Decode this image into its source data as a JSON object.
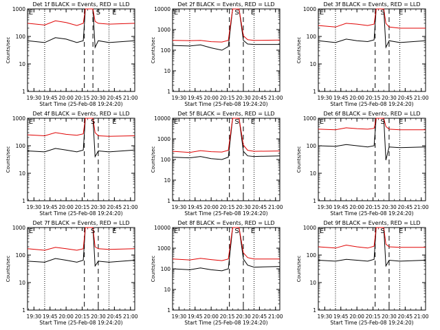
{
  "figure": {
    "ylabel": "Counts/sec",
    "xlabel": "Start Time (25-Feb-08 19:24:20)"
  },
  "colors": {
    "events": "#000000",
    "lld": "#e00000",
    "axes": "#000000",
    "background": "#ffffff"
  },
  "chart_data": [
    {
      "type": "line",
      "title": "Det 1f BLACK = Events, RED = LLD",
      "xlabel": "Start Time (25-Feb-08 19:24:20)",
      "ylabel": "Counts/sec",
      "yscale": "log",
      "xlim": [
        "19:24",
        "21:04"
      ],
      "ylim": [
        1,
        1000
      ],
      "x_tick_labels": [
        "19:30",
        "19:45",
        "20:00",
        "20:15",
        "20:30",
        "20:45",
        "21:00"
      ],
      "y_tick_labels": [
        "1",
        "10",
        "100",
        "1000"
      ],
      "markers": [
        {
          "label": "S",
          "time": "20:30"
        },
        {
          "label": "E",
          "time": "20:45"
        }
      ],
      "dotted_lines": [
        "19:40",
        "20:40"
      ],
      "dashed_lines": [
        "20:17",
        "20:25"
      ],
      "x": [
        "19:24",
        "19:40",
        "19:50",
        "20:00",
        "20:10",
        "20:16",
        "20:18",
        "20:25",
        "20:27",
        "20:30",
        "20:40",
        "21:04"
      ],
      "series": [
        {
          "name": "Events",
          "color": "#000000",
          "values": [
            70,
            60,
            90,
            80,
            60,
            70,
            1000,
            1000,
            40,
            70,
            60,
            70
          ]
        },
        {
          "name": "LLD",
          "color": "#e00000",
          "values": [
            300,
            260,
            370,
            320,
            250,
            300,
            1000,
            1000,
            350,
            300,
            280,
            300
          ]
        }
      ]
    },
    {
      "type": "line",
      "title": "Det 2f BLACK = Events, RED = LLD",
      "xlabel": "Start Time (25-Feb-08 19:24:20)",
      "ylabel": "Counts/sec",
      "yscale": "log",
      "xlim": [
        "19:24",
        "21:04"
      ],
      "ylim": [
        1,
        10000
      ],
      "x_tick_labels": [
        "19:30",
        "19:45",
        "20:00",
        "20:15",
        "20:30",
        "20:45",
        "21:00"
      ],
      "y_tick_labels": [
        "1",
        "10",
        "100",
        "1000",
        "10000"
      ],
      "markers": [
        {
          "label": "S",
          "time": "20:24"
        },
        {
          "label": "E",
          "time": "20:39"
        }
      ],
      "dotted_lines": [
        "19:40",
        "20:40"
      ],
      "dashed_lines": [
        "20:17",
        "20:30"
      ],
      "x": [
        "19:24",
        "19:40",
        "19:50",
        "20:00",
        "20:10",
        "20:16",
        "20:20",
        "20:26",
        "20:30",
        "20:34",
        "20:40",
        "21:04"
      ],
      "series": [
        {
          "name": "Events",
          "color": "#000000",
          "values": [
            170,
            160,
            180,
            130,
            100,
            150,
            10000,
            10000,
            300,
            200,
            190,
            190
          ]
        },
        {
          "name": "LLD",
          "color": "#e00000",
          "values": [
            300,
            290,
            300,
            260,
            250,
            300,
            10000,
            10000,
            500,
            320,
            300,
            310
          ]
        }
      ]
    },
    {
      "type": "line",
      "title": "Det 3f BLACK = Events, RED = LLD",
      "xlabel": "Start Time (25-Feb-08 19:24:20)",
      "ylabel": "Counts/sec",
      "yscale": "log",
      "xlim": [
        "19:24",
        "21:04"
      ],
      "ylim": [
        1,
        1000
      ],
      "x_tick_labels": [
        "19:30",
        "19:45",
        "20:00",
        "20:15",
        "20:30",
        "20:45",
        "21:00"
      ],
      "y_tick_labels": [
        "1",
        "10",
        "100",
        "1000"
      ],
      "markers": [
        {
          "label": "S",
          "time": "20:24"
        },
        {
          "label": "E",
          "time": "20:41"
        }
      ],
      "dotted_lines": [
        "19:40",
        "20:40"
      ],
      "dashed_lines": [
        "20:17",
        "20:30"
      ],
      "x": [
        "19:24",
        "19:40",
        "19:50",
        "20:00",
        "20:10",
        "20:16",
        "20:18",
        "20:25",
        "20:27",
        "20:30",
        "20:40",
        "21:04"
      ],
      "series": [
        {
          "name": "Events",
          "color": "#000000",
          "values": [
            70,
            60,
            80,
            70,
            65,
            75,
            1000,
            1000,
            40,
            70,
            60,
            70
          ]
        },
        {
          "name": "LLD",
          "color": "#e00000",
          "values": [
            250,
            220,
            300,
            280,
            250,
            280,
            1000,
            1000,
            300,
            220,
            200,
            200
          ]
        }
      ]
    },
    {
      "type": "line",
      "title": "Det 4f BLACK = Events, RED = LLD",
      "xlabel": "Start Time (25-Feb-08 19:24:20)",
      "ylabel": "Counts/sec",
      "yscale": "log",
      "xlim": [
        "19:24",
        "21:04"
      ],
      "ylim": [
        1,
        1000
      ],
      "x_tick_labels": [
        "19:30",
        "19:45",
        "20:00",
        "20:15",
        "20:30",
        "20:45",
        "21:00"
      ],
      "y_tick_labels": [
        "1",
        "10",
        "100",
        "1000"
      ],
      "markers": [
        {
          "label": "S",
          "time": "20:25"
        },
        {
          "label": "E",
          "time": "20:45"
        }
      ],
      "dotted_lines": [
        "19:40",
        "20:40"
      ],
      "dashed_lines": [
        "20:17",
        "20:30"
      ],
      "x": [
        "19:24",
        "19:40",
        "19:50",
        "20:00",
        "20:10",
        "20:16",
        "20:18",
        "20:25",
        "20:27",
        "20:30",
        "20:40",
        "21:04"
      ],
      "series": [
        {
          "name": "Events",
          "color": "#000000",
          "values": [
            65,
            60,
            80,
            70,
            60,
            70,
            1000,
            1000,
            40,
            65,
            60,
            70
          ]
        },
        {
          "name": "LLD",
          "color": "#e00000",
          "values": [
            250,
            230,
            300,
            260,
            240,
            270,
            1000,
            1000,
            300,
            230,
            220,
            230
          ]
        }
      ]
    },
    {
      "type": "line",
      "title": "Det 5f BLACK = Events, RED = LLD",
      "xlabel": "Start Time (25-Feb-08 19:24:20)",
      "ylabel": "Counts/sec",
      "yscale": "log",
      "xlim": [
        "19:24",
        "21:04"
      ],
      "ylim": [
        1,
        10000
      ],
      "x_tick_labels": [
        "19:30",
        "19:45",
        "20:00",
        "20:15",
        "20:30",
        "20:45",
        "21:00"
      ],
      "y_tick_labels": [
        "1",
        "10",
        "100",
        "1000",
        "10000"
      ],
      "markers": [
        {
          "label": "S",
          "time": "20:24"
        },
        {
          "label": "E",
          "time": "20:39"
        }
      ],
      "dotted_lines": [
        "19:40",
        "20:40"
      ],
      "dashed_lines": [
        "20:17",
        "20:30"
      ],
      "x": [
        "19:24",
        "19:40",
        "19:50",
        "20:00",
        "20:10",
        "20:16",
        "20:20",
        "20:26",
        "20:30",
        "20:34",
        "20:40",
        "21:04"
      ],
      "series": [
        {
          "name": "Events",
          "color": "#000000",
          "values": [
            130,
            120,
            140,
            110,
            100,
            130,
            10000,
            10000,
            250,
            150,
            140,
            150
          ]
        },
        {
          "name": "LLD",
          "color": "#e00000",
          "values": [
            250,
            220,
            270,
            240,
            230,
            280,
            10000,
            10000,
            500,
            280,
            250,
            260
          ]
        }
      ]
    },
    {
      "type": "line",
      "title": "Det 6f BLACK = Events, RED = LLD",
      "xlabel": "Start Time (25-Feb-08 19:24:20)",
      "ylabel": "Counts/sec",
      "yscale": "log",
      "xlim": [
        "19:24",
        "21:04"
      ],
      "ylim": [
        1,
        1000
      ],
      "x_tick_labels": [
        "19:30",
        "19:45",
        "20:00",
        "20:15",
        "20:30",
        "20:45",
        "21:00"
      ],
      "y_tick_labels": [
        "1",
        "10",
        "100",
        "1000"
      ],
      "markers": [
        {
          "label": "S",
          "time": "20:24"
        },
        {
          "label": "E",
          "time": "20:41"
        }
      ],
      "dotted_lines": [
        "19:40",
        "20:40"
      ],
      "dashed_lines": [
        "20:17",
        "20:30"
      ],
      "x": [
        "19:24",
        "19:40",
        "19:50",
        "20:00",
        "20:10",
        "20:16",
        "20:18",
        "20:25",
        "20:27",
        "20:30",
        "20:40",
        "21:04"
      ],
      "series": [
        {
          "name": "Events",
          "color": "#000000",
          "values": [
            100,
            95,
            110,
            100,
            90,
            100,
            1000,
            1000,
            30,
            90,
            85,
            90
          ]
        },
        {
          "name": "LLD",
          "color": "#e00000",
          "values": [
            400,
            380,
            450,
            420,
            400,
            430,
            1000,
            1000,
            500,
            400,
            380,
            380
          ]
        }
      ]
    },
    {
      "type": "line",
      "title": "Det 7f BLACK = Events, RED = LLD",
      "xlabel": "Start Time (25-Feb-08 19:24:20)",
      "ylabel": "Counts/sec",
      "yscale": "log",
      "xlim": [
        "19:24",
        "21:04"
      ],
      "ylim": [
        1,
        1000
      ],
      "x_tick_labels": [
        "19:30",
        "19:45",
        "20:00",
        "20:15",
        "20:30",
        "20:45",
        "21:00"
      ],
      "y_tick_labels": [
        "1",
        "10",
        "100",
        "1000"
      ],
      "markers": [
        {
          "label": "S",
          "time": "20:25"
        },
        {
          "label": "E",
          "time": "20:45"
        }
      ],
      "dotted_lines": [
        "19:40",
        "20:40"
      ],
      "dashed_lines": [
        "20:17",
        "20:30"
      ],
      "x": [
        "19:24",
        "19:40",
        "19:50",
        "20:00",
        "20:10",
        "20:16",
        "20:18",
        "20:25",
        "20:27",
        "20:30",
        "20:40",
        "21:04"
      ],
      "series": [
        {
          "name": "Events",
          "color": "#000000",
          "values": [
            60,
            55,
            75,
            65,
            55,
            65,
            1000,
            1000,
            40,
            60,
            55,
            65
          ]
        },
        {
          "name": "LLD",
          "color": "#e00000",
          "values": [
            170,
            150,
            190,
            170,
            150,
            170,
            1000,
            1000,
            200,
            170,
            160,
            170
          ]
        }
      ]
    },
    {
      "type": "line",
      "title": "Det 8f BLACK = Events, RED = LLD",
      "xlabel": "Start Time (25-Feb-08 19:24:20)",
      "ylabel": "Counts/sec",
      "yscale": "log",
      "xlim": [
        "19:24",
        "21:04"
      ],
      "ylim": [
        1,
        10000
      ],
      "x_tick_labels": [
        "19:30",
        "19:45",
        "20:00",
        "20:15",
        "20:30",
        "20:45",
        "21:00"
      ],
      "y_tick_labels": [
        "1",
        "10",
        "100",
        "1000",
        "10000"
      ],
      "markers": [
        {
          "label": "S",
          "time": "20:24"
        },
        {
          "label": "E",
          "time": "20:39"
        }
      ],
      "dotted_lines": [
        "19:40",
        "20:40"
      ],
      "dashed_lines": [
        "20:17",
        "20:30"
      ],
      "x": [
        "19:24",
        "19:40",
        "19:50",
        "20:00",
        "20:10",
        "20:16",
        "20:20",
        "20:26",
        "20:30",
        "20:34",
        "20:40",
        "21:04"
      ],
      "series": [
        {
          "name": "Events",
          "color": "#000000",
          "values": [
            100,
            90,
            110,
            90,
            80,
            100,
            10000,
            10000,
            300,
            150,
            120,
            130
          ]
        },
        {
          "name": "LLD",
          "color": "#e00000",
          "values": [
            300,
            270,
            320,
            280,
            250,
            300,
            10000,
            10000,
            600,
            350,
            300,
            300
          ]
        }
      ]
    },
    {
      "type": "line",
      "title": "Det 9f BLACK = Events, RED = LLD",
      "xlabel": "Start Time (25-Feb-08 19:24:20)",
      "ylabel": "Counts/sec",
      "yscale": "log",
      "xlim": [
        "19:24",
        "21:04"
      ],
      "ylim": [
        1,
        1000
      ],
      "x_tick_labels": [
        "19:30",
        "19:45",
        "20:00",
        "20:15",
        "20:30",
        "20:45",
        "21:00"
      ],
      "y_tick_labels": [
        "1",
        "10",
        "100",
        "1000"
      ],
      "markers": [
        {
          "label": "S",
          "time": "20:24"
        },
        {
          "label": "E",
          "time": "20:41"
        }
      ],
      "dotted_lines": [
        "19:40",
        "20:40"
      ],
      "dashed_lines": [
        "20:17",
        "20:30"
      ],
      "x": [
        "19:24",
        "19:40",
        "19:50",
        "20:00",
        "20:10",
        "20:16",
        "20:18",
        "20:25",
        "20:27",
        "20:30",
        "20:40",
        "21:04"
      ],
      "series": [
        {
          "name": "Events",
          "color": "#000000",
          "values": [
            65,
            60,
            70,
            65,
            60,
            70,
            1000,
            1000,
            40,
            65,
            60,
            65
          ]
        },
        {
          "name": "LLD",
          "color": "#e00000",
          "values": [
            200,
            180,
            230,
            200,
            180,
            210,
            1000,
            1000,
            250,
            200,
            190,
            190
          ]
        }
      ]
    }
  ]
}
